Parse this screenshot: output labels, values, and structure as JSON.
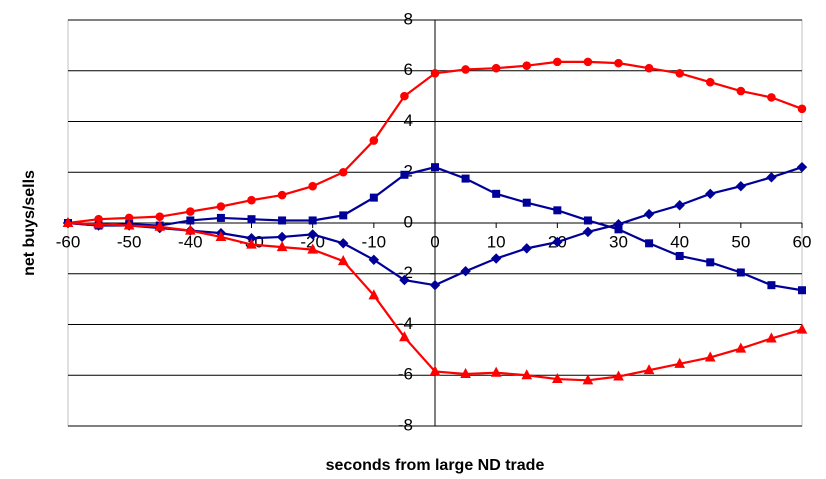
{
  "chart_data": {
    "type": "line",
    "x_label": "seconds from large ND trade",
    "y_label": "net buys/sells",
    "x": [
      -60,
      -55,
      -50,
      -45,
      -40,
      -35,
      -30,
      -25,
      -20,
      -15,
      -10,
      -5,
      0,
      5,
      10,
      15,
      20,
      25,
      30,
      35,
      40,
      45,
      50,
      55,
      60
    ],
    "series": [
      {
        "color": "#ff0000",
        "marker": "circle",
        "values": [
          0,
          0.15,
          0.2,
          0.25,
          0.45,
          0.65,
          0.9,
          1.1,
          1.45,
          2.0,
          3.25,
          5.0,
          5.9,
          6.05,
          6.1,
          6.2,
          6.35,
          6.35,
          6.3,
          6.1,
          5.9,
          5.55,
          5.2,
          4.95,
          4.5
        ]
      },
      {
        "color": "#000099",
        "marker": "square",
        "values": [
          0,
          -0.1,
          -0.05,
          -0.1,
          0.1,
          0.2,
          0.15,
          0.1,
          0.1,
          0.3,
          1.0,
          1.9,
          2.2,
          1.75,
          1.15,
          0.8,
          0.5,
          0.1,
          -0.25,
          -0.8,
          -1.3,
          -1.55,
          -1.95,
          -2.45,
          -2.65
        ]
      },
      {
        "color": "#000099",
        "marker": "diamond",
        "values": [
          0,
          -0.1,
          -0.1,
          -0.2,
          -0.3,
          -0.4,
          -0.6,
          -0.55,
          -0.45,
          -0.8,
          -1.45,
          -2.25,
          -2.45,
          -1.9,
          -1.4,
          -1.0,
          -0.75,
          -0.35,
          -0.05,
          0.35,
          0.7,
          1.15,
          1.45,
          1.8,
          2.2
        ]
      },
      {
        "color": "#ff0000",
        "marker": "triangle",
        "values": [
          0,
          -0.05,
          -0.1,
          -0.15,
          -0.3,
          -0.55,
          -0.85,
          -0.95,
          -1.05,
          -1.5,
          -2.85,
          -4.5,
          -5.85,
          -5.95,
          -5.9,
          -6.0,
          -6.15,
          -6.2,
          -6.05,
          -5.8,
          -5.55,
          -5.3,
          -4.95,
          -4.55,
          -4.2
        ]
      }
    ],
    "xlim": [
      -60,
      60
    ],
    "xticks": [
      -60,
      -50,
      -40,
      -30,
      -20,
      -10,
      0,
      10,
      20,
      30,
      40,
      50,
      60
    ],
    "ylim": [
      -8,
      8
    ],
    "yticks": [
      -8,
      -6,
      -4,
      -2,
      0,
      2,
      4,
      6,
      8
    ],
    "grid": true
  }
}
